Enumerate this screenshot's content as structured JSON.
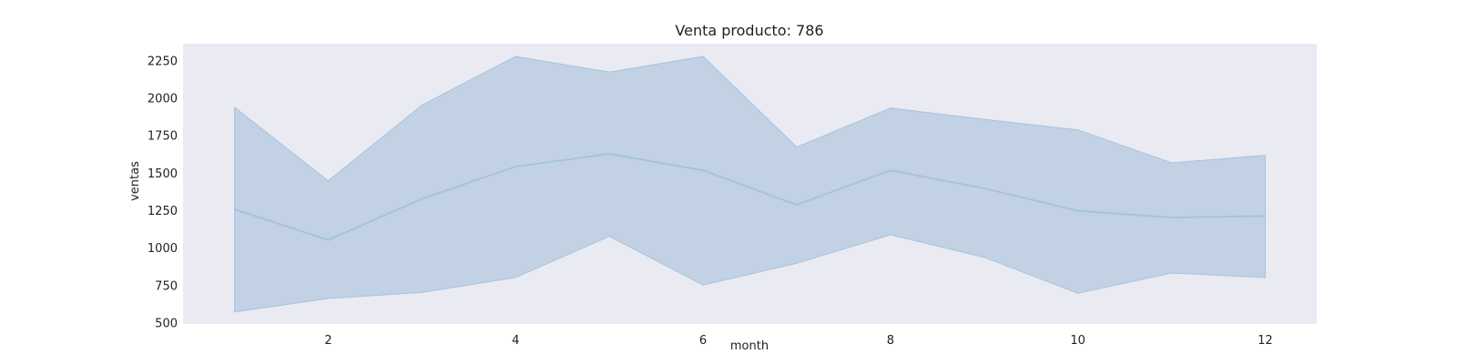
{
  "chart_data": {
    "type": "area",
    "title": "Venta producto: 786",
    "xlabel": "month",
    "ylabel": "ventas",
    "xlim": [
      0.45,
      12.55
    ],
    "ylim": [
      500,
      2370
    ],
    "xticks": [
      2,
      4,
      6,
      8,
      10,
      12
    ],
    "yticks": [
      500,
      750,
      1000,
      1250,
      1500,
      1750,
      2000,
      2250
    ],
    "grid": false,
    "x": [
      1,
      2,
      3,
      4,
      5,
      6,
      7,
      8,
      9,
      10,
      11,
      12
    ],
    "series": [
      {
        "mean": [
          1265,
          1060,
          1335,
          1550,
          1635,
          1525,
          1295,
          1525,
          1405,
          1255,
          1210,
          1220
        ],
        "upper": [
          1945,
          1455,
          1960,
          2285,
          2180,
          2285,
          1680,
          1940,
          1865,
          1795,
          1575,
          1625
        ],
        "lower": [
          580,
          670,
          710,
          810,
          1085,
          760,
          905,
          1095,
          945,
          705,
          840,
          810
        ]
      }
    ],
    "colors": {
      "plot_background": "#eaeaf2",
      "band_fill": "#c2d2e4",
      "line": "#a6c3dc"
    }
  }
}
